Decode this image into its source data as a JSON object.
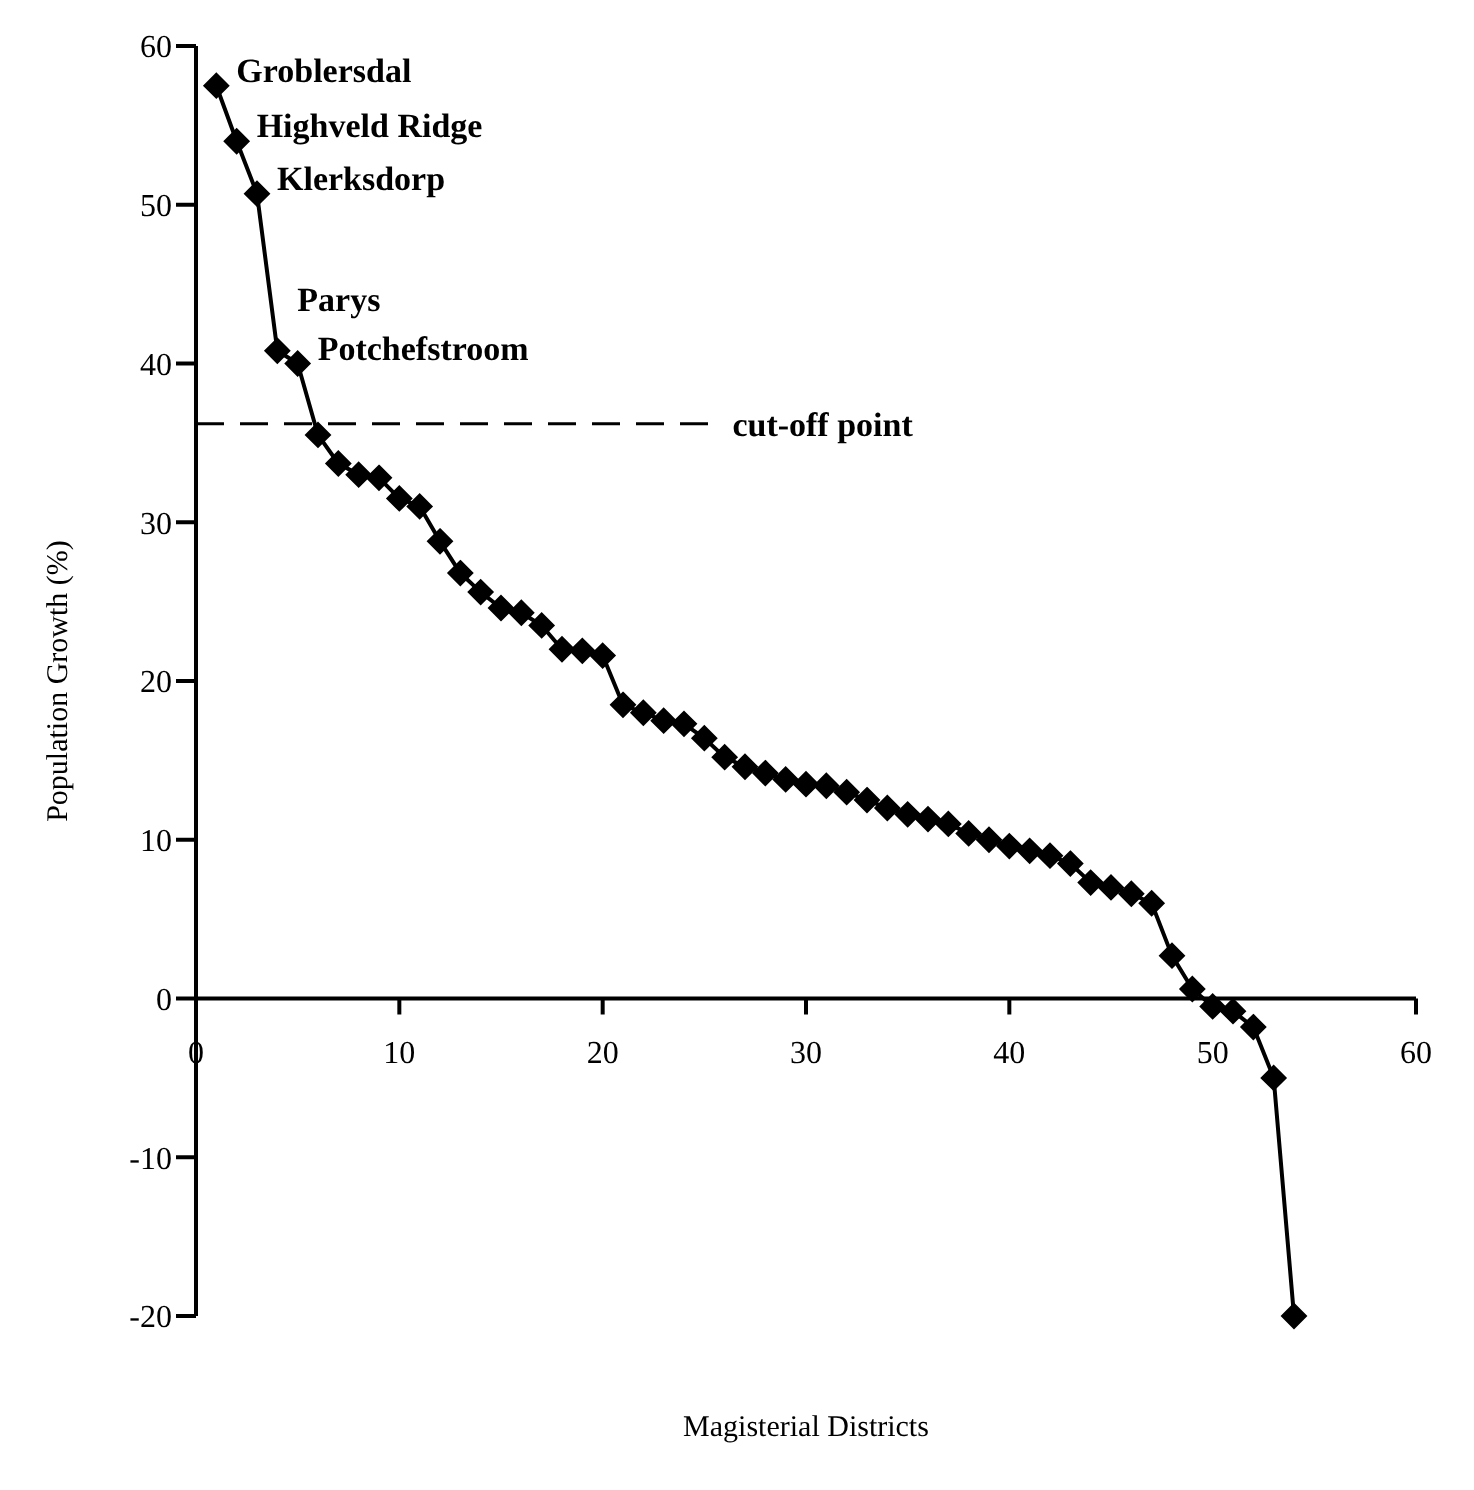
{
  "chart_data": {
    "type": "line",
    "xlabel": "Magisterial Districts",
    "ylabel": "Population Growth (%)",
    "x": [
      1,
      2,
      3,
      4,
      5,
      6,
      7,
      8,
      9,
      10,
      11,
      12,
      13,
      14,
      15,
      16,
      17,
      18,
      19,
      20,
      21,
      22,
      23,
      24,
      25,
      26,
      27,
      28,
      29,
      30,
      31,
      32,
      33,
      34,
      35,
      36,
      37,
      38,
      39,
      40,
      41,
      42,
      43,
      44,
      45,
      46,
      47,
      48,
      49,
      50,
      51,
      52,
      53,
      54
    ],
    "series": [
      {
        "color": "#000000",
        "values": [
          57.5,
          54,
          50.7,
          40.8,
          40,
          35.5,
          33.7,
          33,
          32.8,
          31.5,
          31,
          28.8,
          26.8,
          25.6,
          24.6,
          24.3,
          23.5,
          22,
          21.9,
          21.6,
          18.5,
          18,
          17.5,
          17.3,
          16.4,
          15.2,
          14.6,
          14.2,
          13.8,
          13.5,
          13.4,
          13,
          12.5,
          12,
          11.6,
          11.3,
          11,
          10.4,
          10,
          9.6,
          9.3,
          9,
          8.5,
          7.3,
          7,
          6.6,
          6,
          2.7,
          0.6,
          -0.5,
          -0.8,
          -1.8,
          -5,
          -20
        ]
      }
    ],
    "marker": "diamond",
    "line_style": "solid",
    "xlim": [
      0,
      60
    ],
    "xticks": [
      0,
      10,
      20,
      30,
      40,
      50,
      60
    ],
    "ylim": [
      -20,
      60
    ],
    "yticks": [
      -20,
      -10,
      0,
      10,
      20,
      30,
      40,
      50,
      60
    ],
    "grid": false,
    "legend": false,
    "ref_lines": [
      {
        "axis": "y",
        "value": 36.2,
        "label": "cut-off point",
        "line_style": "dashed",
        "color": "#000000"
      }
    ],
    "annotations": [
      {
        "text": "Groblersdal",
        "x": 1,
        "y": 57.5
      },
      {
        "text": "Highveld Ridge",
        "x": 2,
        "y": 54
      },
      {
        "text": "Klerksdorp",
        "x": 3,
        "y": 50.7
      },
      {
        "text": "Parys",
        "x": 4,
        "y": 40.8
      },
      {
        "text": "Potchefstroom",
        "x": 5,
        "y": 40
      }
    ]
  }
}
